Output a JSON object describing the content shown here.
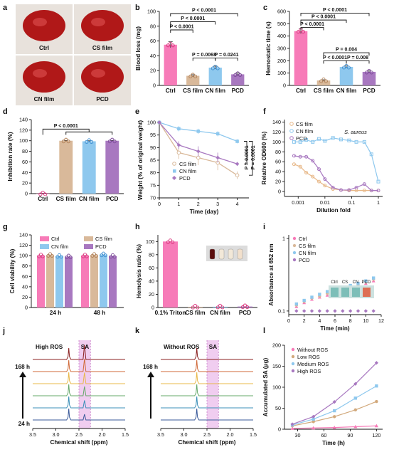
{
  "colors": {
    "ctrl": "#f77bb8",
    "cs": "#d9b99a",
    "cn": "#8ec8ee",
    "pcd": "#a878c0",
    "nmr_band": "#f0cdf0",
    "nmr_lines": [
      "#8b2020",
      "#d06a3a",
      "#e8b84a",
      "#66a86a",
      "#3b8fb8",
      "#3a5a9a"
    ],
    "photo_bg": "#e8e2dc",
    "blood": "#b01818"
  },
  "labels": {
    "panels": [
      "a",
      "b",
      "c",
      "d",
      "e",
      "f",
      "g",
      "h",
      "i",
      "j",
      "k",
      "l"
    ],
    "photo_a": [
      "Ctrl",
      "CS film",
      "CN film",
      "PCD"
    ],
    "nmr_j": {
      "title": "High ROS",
      "band": "SA",
      "top_time": "168 h",
      "bottom_time": "24 h",
      "xlabel": "Chemical shift (ppm)",
      "ticks": [
        "3.5",
        "3.0",
        "2.5",
        "2.0",
        "1.5"
      ]
    },
    "nmr_k": {
      "title": "Without ROS",
      "band": "SA",
      "top_time": "168 h",
      "xlabel": "Chemical shift (ppm)",
      "ticks": [
        "3.5",
        "3.0",
        "2.5",
        "2.0",
        "1.5"
      ]
    },
    "inset_i": [
      "Ctrl",
      "CS",
      "CN",
      "PCD"
    ]
  },
  "chart_data": [
    {
      "id": "b",
      "type": "bar",
      "ylabel": "Blood loss (mg)",
      "ylim": [
        0,
        100
      ],
      "yticks": [
        0,
        20,
        40,
        60,
        80,
        100
      ],
      "categories": [
        "Ctrl",
        "CS film",
        "CN film",
        "PCD"
      ],
      "values": [
        55,
        13,
        24,
        15
      ],
      "errors": [
        4,
        1.5,
        2,
        2
      ],
      "annotations": [
        {
          "text": "P < 0.0001",
          "from": 0,
          "to": 3,
          "y": 97
        },
        {
          "text": "P < 0.0001",
          "from": 0,
          "to": 2,
          "y": 86
        },
        {
          "text": "P < 0.0001",
          "from": 0,
          "to": 1,
          "y": 75
        },
        {
          "text": "P = 0.0068",
          "from": 1,
          "to": 2,
          "y": 37
        },
        {
          "text": "P = 0.0241",
          "from": 2,
          "to": 3,
          "y": 37
        }
      ]
    },
    {
      "id": "c",
      "type": "bar",
      "ylabel": "Hemostatic time (s)",
      "ylim": [
        0,
        600
      ],
      "yticks": [
        0,
        100,
        200,
        300,
        400,
        500,
        600
      ],
      "categories": [
        "Ctrl",
        "CS film",
        "CN film",
        "PCD"
      ],
      "values": [
        440,
        40,
        150,
        110
      ],
      "errors": [
        20,
        6,
        8,
        8
      ],
      "annotations": [
        {
          "text": "P < 0.0001",
          "from": 0,
          "to": 3,
          "y": 585
        },
        {
          "text": "P < 0.0001",
          "from": 0,
          "to": 2,
          "y": 530
        },
        {
          "text": "P < 0.0001",
          "from": 0,
          "to": 1,
          "y": 470
        },
        {
          "text": "P = 0.004",
          "from": 1,
          "to": 3,
          "y": 265
        },
        {
          "text": "P < 0.0001",
          "from": 1,
          "to": 2,
          "y": 200
        },
        {
          "text": "P = 0.008",
          "from": 2,
          "to": 3,
          "y": 200
        }
      ]
    },
    {
      "id": "d",
      "type": "bar",
      "ylabel": "Inhibition rate (%)",
      "ylim": [
        0,
        140
      ],
      "yticks": [
        0,
        20,
        40,
        60,
        80,
        100,
        120,
        140
      ],
      "categories": [
        "Ctrl",
        "CS film",
        "CN film",
        "PCD"
      ],
      "values": [
        0,
        100,
        99,
        100
      ],
      "errors": [
        0.5,
        0.5,
        1,
        0.5
      ],
      "annotations": [
        {
          "text": "P < 0.0001",
          "from": 0,
          "to": "1-3",
          "y": 122
        }
      ]
    },
    {
      "id": "e",
      "type": "line",
      "xlabel": "Time (day)",
      "ylabel": "Weight (% of original weight)",
      "xlim": [
        0,
        4.6
      ],
      "ylim": [
        70,
        100
      ],
      "xticks": [
        0,
        1,
        2,
        3,
        4
      ],
      "yticks": [
        70,
        75,
        80,
        85,
        90,
        95,
        100
      ],
      "x": [
        0,
        1,
        2,
        3,
        4
      ],
      "series": [
        {
          "name": "CS film",
          "values": [
            100,
            88,
            86,
            84,
            79
          ],
          "errors": [
            0,
            2.5,
            3,
            3,
            1.5
          ]
        },
        {
          "name": "CN film",
          "values": [
            100,
            97.5,
            96.5,
            95.5,
            92.5
          ],
          "errors": [
            0,
            1,
            1,
            1,
            0.8
          ]
        },
        {
          "name": "PCD",
          "values": [
            100,
            91,
            88.5,
            86,
            83.5
          ],
          "errors": [
            0,
            1.5,
            2,
            2,
            0.8
          ]
        }
      ],
      "annotations": [
        "P = 0.0001",
        "P = 0.0001"
      ]
    },
    {
      "id": "f",
      "type": "scatter",
      "xlabel": "Dilution fold",
      "ylabel": "Relative OD600 (%)",
      "scale": "log-x",
      "xticks": [
        "0.001",
        "0.01",
        "0.1",
        "1"
      ],
      "yticks": [
        0,
        20,
        40,
        60,
        80,
        100,
        120,
        140
      ],
      "ylim": [
        -10,
        145
      ],
      "annotation": "S. aureus",
      "x": [
        0.0007,
        0.0012,
        0.002,
        0.0035,
        0.006,
        0.01,
        0.02,
        0.04,
        0.08,
        0.15,
        0.3,
        0.55,
        1
      ],
      "series": [
        {
          "name": "CS film",
          "values": [
            55,
            50,
            38,
            30,
            20,
            12,
            5,
            3,
            2,
            2,
            2,
            2,
            2
          ]
        },
        {
          "name": "CN film",
          "values": [
            100,
            100,
            104,
            100,
            106,
            102,
            108,
            105,
            103,
            100,
            100,
            75,
            20
          ]
        },
        {
          "name": "PCD",
          "values": [
            72,
            70,
            70,
            62,
            45,
            25,
            8,
            3,
            3,
            8,
            15,
            2,
            2
          ]
        }
      ]
    },
    {
      "id": "g",
      "type": "bar",
      "ylabel": "Cell viability (%)",
      "ylim": [
        0,
        140
      ],
      "yticks": [
        0,
        20,
        40,
        60,
        80,
        100,
        120,
        140
      ],
      "categories": [
        "24 h",
        "48 h"
      ],
      "series": [
        {
          "name": "Ctrl",
          "values": [
            100,
            100
          ]
        },
        {
          "name": "CS film",
          "values": [
            101,
            101
          ]
        },
        {
          "name": "CN film",
          "values": [
            99,
            102
          ]
        },
        {
          "name": "PCD",
          "values": [
            98,
            99
          ]
        }
      ]
    },
    {
      "id": "h",
      "type": "bar",
      "ylabel": "Hemolysis ratio (%)",
      "ylim": [
        0,
        110
      ],
      "yticks": [
        0,
        20,
        40,
        60,
        80,
        100
      ],
      "categories": [
        "0.1% Triton",
        "CS film",
        "CN film",
        "PCD"
      ],
      "values": [
        100,
        1.0,
        1.2,
        1.5
      ],
      "errors": [
        2,
        0.3,
        0.3,
        0.5
      ]
    },
    {
      "id": "i",
      "type": "scatter",
      "xlabel": "Time (min)",
      "ylabel": "Absorbance at 652 nm",
      "scale": "log-y",
      "xticks": [
        0,
        2,
        4,
        6,
        8,
        10,
        12
      ],
      "yticks": [
        "0.1",
        "1"
      ],
      "x": [
        1,
        2,
        3,
        4,
        5,
        6,
        7,
        8,
        9,
        10,
        11
      ],
      "series": [
        {
          "name": "Ctrl",
          "values": [
            0.115,
            0.13,
            0.145,
            0.155,
            0.165,
            0.18,
            0.19,
            0.2,
            0.215,
            0.24,
            0.26
          ]
        },
        {
          "name": "CS film",
          "values": [
            0.12,
            0.135,
            0.15,
            0.16,
            0.175,
            0.19,
            0.205,
            0.215,
            0.225,
            0.25,
            0.275
          ]
        },
        {
          "name": "CN film",
          "values": [
            0.125,
            0.14,
            0.155,
            0.17,
            0.185,
            0.195,
            0.21,
            0.225,
            0.24,
            0.26,
            0.285
          ]
        },
        {
          "name": "PCD",
          "values": [
            0.1,
            0.1,
            0.1,
            0.1,
            0.1,
            0.1,
            0.1,
            0.1,
            0.1,
            0.1,
            0.1
          ]
        }
      ]
    },
    {
      "id": "l",
      "type": "line",
      "xlabel": "Time (h)",
      "ylabel": "Accumulated SA (μg)",
      "xlim": [
        15,
        127
      ],
      "ylim": [
        0,
        200
      ],
      "xticks": [
        30,
        60,
        90,
        120
      ],
      "yticks": [
        0,
        50,
        100,
        150,
        200
      ],
      "x": [
        24,
        48,
        72,
        96,
        120
      ],
      "series": [
        {
          "name": "Without ROS",
          "values": [
            2,
            3,
            4,
            6,
            8
          ]
        },
        {
          "name": "Low ROS",
          "values": [
            8,
            18,
            30,
            46,
            66
          ]
        },
        {
          "name": "Medium ROS",
          "values": [
            10,
            24,
            44,
            74,
            103
          ]
        },
        {
          "name": "High ROS",
          "values": [
            12,
            30,
            65,
            108,
            158
          ]
        }
      ]
    }
  ]
}
